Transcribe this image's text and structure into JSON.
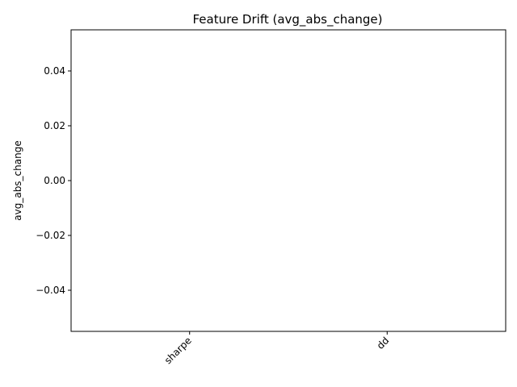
{
  "chart_data": {
    "type": "bar",
    "title": "Feature Drift (avg_abs_change)",
    "xlabel": "",
    "ylabel": "avg_abs_change",
    "categories": [
      "sharpe",
      "dd"
    ],
    "values": [
      0,
      0
    ],
    "ylim": [
      -0.055,
      0.055
    ],
    "yticks": [
      -0.04,
      -0.02,
      0.0,
      0.02,
      0.04
    ],
    "ytick_labels": [
      "−0.04",
      "−0.02",
      "0.00",
      "0.02",
      "0.04"
    ],
    "grid": false,
    "legend": null,
    "colors": {
      "axis": "#000000",
      "bar": "#1f77b4"
    }
  }
}
